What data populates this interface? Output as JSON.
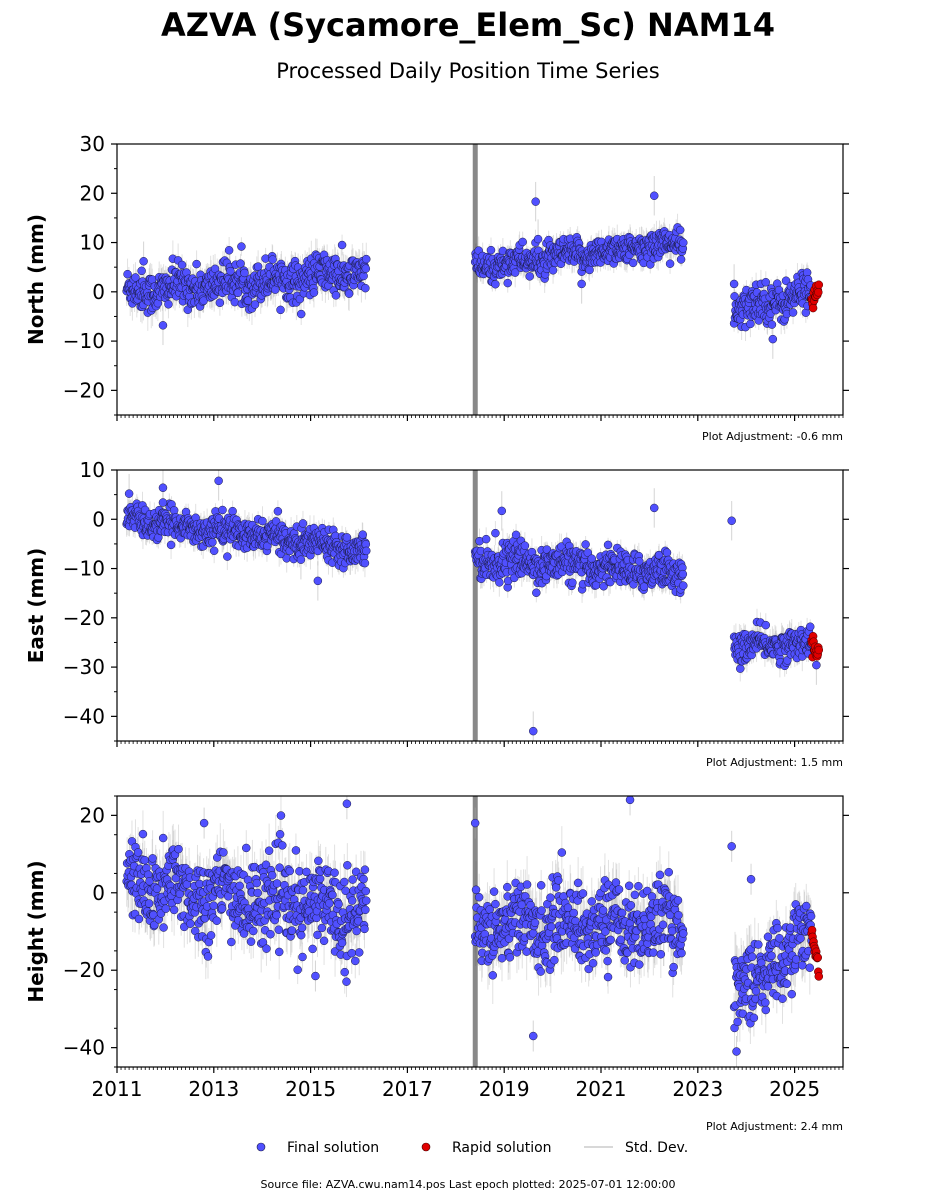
{
  "title": "AZVA (Sycamore_Elem_Sc) NAM14",
  "subtitle": "Processed Daily Position Time Series",
  "source_line": "Source file: AZVA.cwu.nam14.pos  Last epoch plotted: 2025-07-01 12:00:00",
  "legend": {
    "final": "Final solution",
    "rapid": "Rapid solution",
    "std": "Std. Dev."
  },
  "colors": {
    "final": "#5050ff",
    "rapid": "#e00000",
    "std": "#aaaaaa",
    "marker_edge": "#1a1a40"
  },
  "chart_data": [
    {
      "type": "scatter",
      "ylabel": "North (mm)",
      "adjustment": "Plot Adjustment: -0.6 mm",
      "ylim": [
        -25,
        30
      ],
      "yticks": [
        -20,
        -10,
        0,
        10,
        20,
        30
      ],
      "xlim": [
        2011,
        2026
      ],
      "xticks": [
        2011,
        2013,
        2015,
        2017,
        2019,
        2021,
        2023,
        2025
      ],
      "xticklabels_shown": false,
      "segments": [
        {
          "x_start": 2011.2,
          "x_end": 2016.15,
          "y_start": 0.0,
          "y_end": 4.0,
          "noise": 2.0,
          "sigma": 2.5
        },
        {
          "x_start": 2018.4,
          "x_end": 2022.7,
          "y_start": 5.0,
          "y_end": 10.0,
          "noise": 1.5,
          "sigma": 2.0
        },
        {
          "x_start": 2023.75,
          "x_end": 2025.35,
          "y_start": -4.0,
          "y_end": 0.0,
          "noise": 2.0,
          "sigma": 2.0
        }
      ],
      "rapid": {
        "x_start": 2025.35,
        "x_end": 2025.5,
        "y_start": -2.0,
        "y_end": 1.0
      },
      "outliers": [
        {
          "x": 2011.55,
          "y": 6.2
        },
        {
          "x": 2011.95,
          "y": -6.8
        },
        {
          "x": 2019.65,
          "y": 18.3
        },
        {
          "x": 2019.7,
          "y": 10.7
        },
        {
          "x": 2022.1,
          "y": 19.5
        },
        {
          "x": 2020.6,
          "y": 1.6
        },
        {
          "x": 2023.75,
          "y": 1.6
        },
        {
          "x": 2024.55,
          "y": -9.6
        }
      ]
    },
    {
      "type": "scatter",
      "ylabel": "East (mm)",
      "adjustment": "Plot Adjustment: 1.5 mm",
      "ylim": [
        -45,
        10
      ],
      "yticks": [
        -40,
        -30,
        -20,
        -10,
        0,
        10
      ],
      "xlim": [
        2011,
        2026
      ],
      "xticks": [
        2011,
        2013,
        2015,
        2017,
        2019,
        2021,
        2023,
        2025
      ],
      "xticklabels_shown": false,
      "segments": [
        {
          "x_start": 2011.2,
          "x_end": 2016.15,
          "y_start": 0.0,
          "y_end": -6.0,
          "noise": 1.5,
          "sigma": 2.0
        },
        {
          "x_start": 2018.4,
          "x_end": 2022.7,
          "y_start": -8.0,
          "y_end": -11.0,
          "noise": 1.8,
          "sigma": 2.0
        },
        {
          "x_start": 2023.75,
          "x_end": 2025.35,
          "y_start": -26.0,
          "y_end": -25.0,
          "noise": 1.5,
          "sigma": 2.0
        }
      ],
      "rapid": {
        "x_start": 2025.35,
        "x_end": 2025.5,
        "y_start": -25.0,
        "y_end": -27.0
      },
      "outliers": [
        {
          "x": 2011.25,
          "y": 5.2
        },
        {
          "x": 2011.95,
          "y": 6.4
        },
        {
          "x": 2011.95,
          "y": 3.4
        },
        {
          "x": 2013.1,
          "y": 7.8
        },
        {
          "x": 2014.8,
          "y": -8.2
        },
        {
          "x": 2015.15,
          "y": -12.5
        },
        {
          "x": 2018.95,
          "y": 1.7
        },
        {
          "x": 2019.6,
          "y": -43.0
        },
        {
          "x": 2022.1,
          "y": 2.3
        },
        {
          "x": 2023.7,
          "y": -0.3
        },
        {
          "x": 2025.45,
          "y": -29.6
        }
      ]
    },
    {
      "type": "scatter",
      "ylabel": "Height (mm)",
      "adjustment": "Plot Adjustment: 2.4 mm",
      "ylim": [
        -45,
        25
      ],
      "yticks": [
        -40,
        -20,
        0,
        20
      ],
      "xlim": [
        2011,
        2026
      ],
      "xticks": [
        2011,
        2013,
        2015,
        2017,
        2019,
        2021,
        2023,
        2025
      ],
      "xticklabels": [
        "2011",
        "2013",
        "2015",
        "2017",
        "2019",
        "2021",
        "2023",
        "2025"
      ],
      "xticklabels_shown": true,
      "segments": [
        {
          "x_start": 2011.2,
          "x_end": 2016.15,
          "y_start": 2.0,
          "y_end": -5.0,
          "noise": 5.5,
          "sigma": 5.0
        },
        {
          "x_start": 2018.4,
          "x_end": 2022.7,
          "y_start": -8.0,
          "y_end": -8.0,
          "noise": 5.0,
          "sigma": 5.0
        },
        {
          "x_start": 2023.75,
          "x_end": 2024.45,
          "y_start": -22.0,
          "y_end": -25.0,
          "noise": 5.0,
          "sigma": 5.0
        },
        {
          "x_start": 2024.45,
          "x_end": 2025.35,
          "y_start": -18.0,
          "y_end": -10.0,
          "noise": 5.0,
          "sigma": 5.0
        }
      ],
      "rapid": {
        "x_start": 2025.35,
        "x_end": 2025.5,
        "y_start": -10.0,
        "y_end": -20.0
      },
      "outliers": [
        {
          "x": 2012.8,
          "y": 18.0
        },
        {
          "x": 2015.75,
          "y": 23.0
        },
        {
          "x": 2015.1,
          "y": -21.5
        },
        {
          "x": 2018.4,
          "y": 18.0
        },
        {
          "x": 2019.6,
          "y": -37.0
        },
        {
          "x": 2021.6,
          "y": 24.0
        },
        {
          "x": 2023.7,
          "y": 12.0
        },
        {
          "x": 2024.1,
          "y": 3.5
        },
        {
          "x": 2023.8,
          "y": -41.0
        }
      ]
    }
  ]
}
